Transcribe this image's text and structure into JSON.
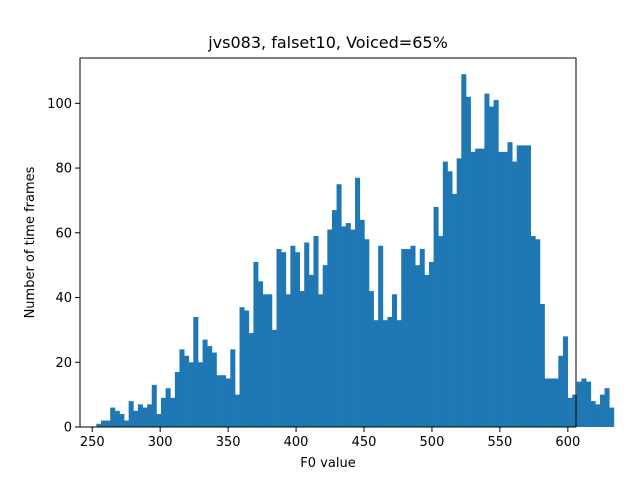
{
  "chart_data": {
    "type": "bar",
    "title": "jvs083, falset10, Voiced=65%",
    "xlabel": "F0 value",
    "ylabel": "Number of time frames",
    "xlim": [
      241,
      606
    ],
    "ylim": [
      0,
      114
    ],
    "xticks": [
      "250",
      "300",
      "350",
      "400",
      "450",
      "500",
      "550",
      "600"
    ],
    "yticks": [
      "0",
      "20",
      "40",
      "60",
      "80",
      "100"
    ],
    "bar_color": "#1f77b4",
    "bin_width": 3.4,
    "bin_start": 253,
    "values": [
      1,
      2,
      2,
      6,
      5,
      4,
      2,
      8,
      5,
      7,
      6,
      7,
      13,
      4,
      9,
      12,
      9,
      17,
      24,
      22,
      20,
      34,
      20,
      27,
      25,
      23,
      16,
      16,
      15,
      24,
      10,
      37,
      36,
      29,
      51,
      45,
      41,
      41,
      30,
      55,
      54,
      41,
      56,
      54,
      42,
      57,
      47,
      59,
      41,
      50,
      61,
      67,
      75,
      62,
      63,
      61,
      77,
      64,
      58,
      42,
      33,
      56,
      33,
      34,
      41,
      33,
      55,
      55,
      56,
      50,
      55,
      47,
      51,
      68,
      59,
      82,
      79,
      72,
      83,
      109,
      102,
      85,
      86,
      86,
      103,
      99,
      101,
      85,
      85,
      88,
      82,
      87,
      87,
      87,
      59,
      58,
      38,
      15,
      15,
      15,
      22,
      28,
      9,
      10,
      14,
      15,
      14,
      8,
      7,
      10,
      12,
      6
    ]
  }
}
